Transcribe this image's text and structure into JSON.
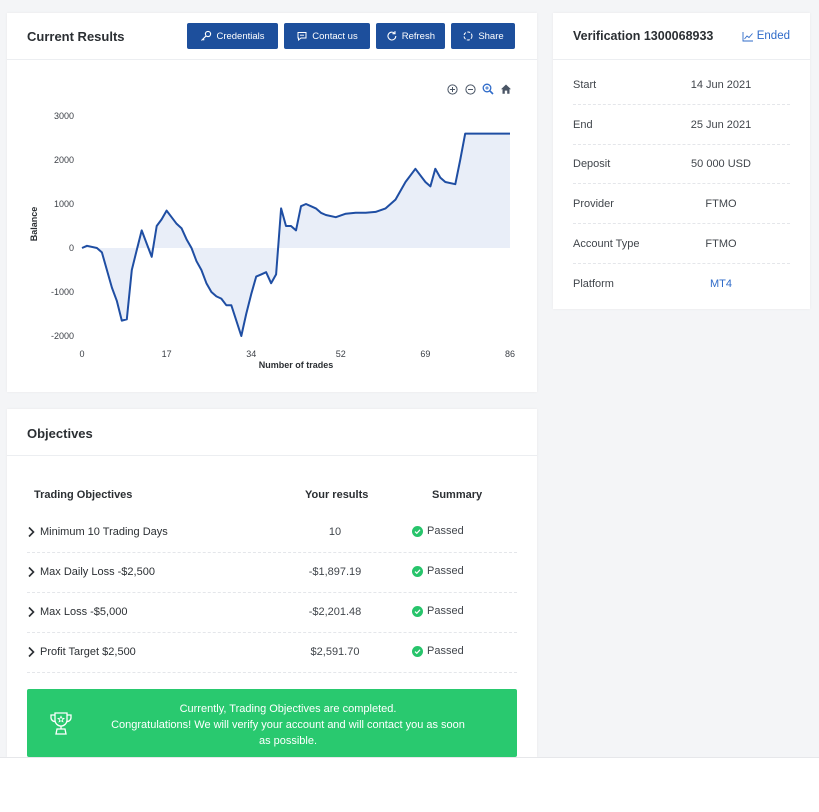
{
  "results": {
    "title": "Current Results",
    "buttons": {
      "credentials": "Credentials",
      "contact": "Contact us",
      "refresh": "Refresh",
      "share": "Share"
    },
    "toolbar_icons": [
      "zoom-in-icon",
      "zoom-out-icon",
      "zoom-select-icon",
      "home-icon"
    ]
  },
  "chart_data": {
    "type": "area",
    "xlabel": "Number of trades",
    "ylabel": "Balance",
    "xlim": [
      0,
      86
    ],
    "ylim": [
      -2200,
      3100
    ],
    "xticks": [
      0,
      17,
      34,
      52,
      69,
      86
    ],
    "yticks": [
      3000,
      2000,
      1000,
      0,
      -1000,
      -2000
    ],
    "series": [
      {
        "x": [
          0,
          1,
          3,
          4,
          5,
          6,
          7,
          8,
          9,
          10,
          11,
          12,
          13,
          14,
          15,
          16,
          17,
          18,
          19,
          20,
          21,
          22,
          23,
          24,
          25,
          26,
          27,
          28,
          29,
          30,
          31,
          32,
          33,
          34,
          35,
          36,
          37,
          38,
          39,
          40,
          41,
          42,
          43,
          44,
          45,
          46,
          47,
          48,
          49,
          51,
          53,
          55,
          57,
          59,
          61,
          63,
          65,
          67,
          69,
          70,
          71,
          72,
          73,
          75,
          76,
          77,
          78,
          79,
          80,
          81,
          86
        ],
        "y": [
          0,
          50,
          0,
          -100,
          -500,
          -900,
          -1200,
          -1650,
          -1620,
          -500,
          -50,
          400,
          100,
          -200,
          500,
          650,
          850,
          700,
          550,
          450,
          200,
          0,
          -300,
          -500,
          -800,
          -1000,
          -1100,
          -1150,
          -1300,
          -1300,
          -1650,
          -2000,
          -1500,
          -1050,
          -650,
          -600,
          -550,
          -800,
          -600,
          900,
          500,
          500,
          400,
          950,
          1000,
          950,
          900,
          800,
          750,
          700,
          780,
          800,
          800,
          820,
          900,
          1100,
          1500,
          1800,
          1500,
          1400,
          1800,
          1600,
          1500,
          1450,
          2000,
          2600,
          2600,
          2600,
          2600,
          2600,
          2600
        ]
      }
    ]
  },
  "verification": {
    "title": "Verification 1300068933",
    "status": "Ended",
    "rows": [
      {
        "label": "Start",
        "value": "14 Jun 2021"
      },
      {
        "label": "End",
        "value": "25 Jun 2021"
      },
      {
        "label": "Deposit",
        "value": "50 000 USD"
      },
      {
        "label": "Provider",
        "value": "FTMO"
      },
      {
        "label": "Account Type",
        "value": "FTMO"
      },
      {
        "label": "Platform",
        "value": "MT4"
      }
    ]
  },
  "objectives": {
    "title": "Objectives",
    "columns": [
      "Trading Objectives",
      "Your results",
      "Summary"
    ],
    "rows": [
      {
        "name": "Minimum 10 Trading Days",
        "result": "10",
        "status": "Passed"
      },
      {
        "name": "Max Daily Loss -$2,500",
        "result": "-$1,897.19",
        "status": "Passed"
      },
      {
        "name": "Max Loss -$5,000",
        "result": "-$2,201.48",
        "status": "Passed"
      },
      {
        "name": "Profit Target $2,500",
        "result": "$2,591.70",
        "status": "Passed"
      }
    ],
    "banner": {
      "line1": "Currently, Trading Objectives are completed.",
      "line2": "Congratulations! We will verify your account and will contact you as soon",
      "line3": "as possible."
    }
  },
  "colors": {
    "primary": "#1d4f9c",
    "line": "#1f4ea3",
    "area": "#e9eef8",
    "success": "#29c96f",
    "link": "#2f6bc9"
  }
}
